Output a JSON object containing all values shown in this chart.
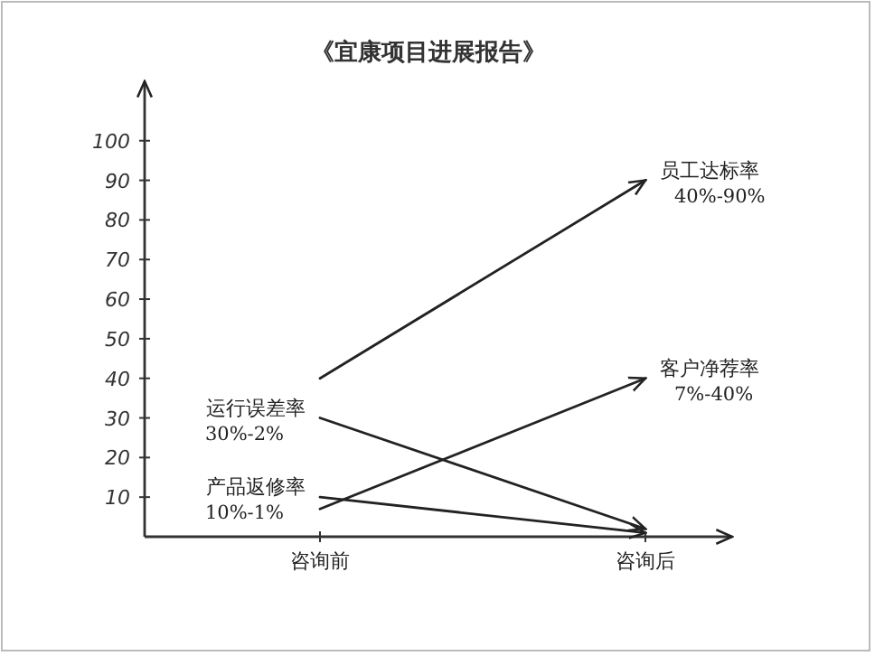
{
  "chart_data": {
    "type": "line",
    "title": "《宜康项目进展报告》",
    "categories": [
      "咨询前",
      "咨询后"
    ],
    "ylim": [
      0,
      115
    ],
    "yticks": [
      10,
      20,
      30,
      40,
      50,
      60,
      70,
      80,
      90,
      100
    ],
    "grid": false,
    "marker": "none",
    "line_style": "solid",
    "series": [
      {
        "name": "员工达标率",
        "color": "#222222",
        "values": [
          40,
          90
        ]
      },
      {
        "name": "客户净荐率",
        "color": "#222222",
        "values": [
          7,
          40
        ]
      },
      {
        "name": "运行误差率",
        "color": "#222222",
        "values": [
          30,
          2
        ]
      },
      {
        "name": "产品返修率",
        "color": "#222222",
        "values": [
          10,
          1
        ]
      }
    ],
    "annotations": [
      "40%-90%",
      "7%-40%",
      "30%-2%",
      "10%-1%"
    ]
  }
}
